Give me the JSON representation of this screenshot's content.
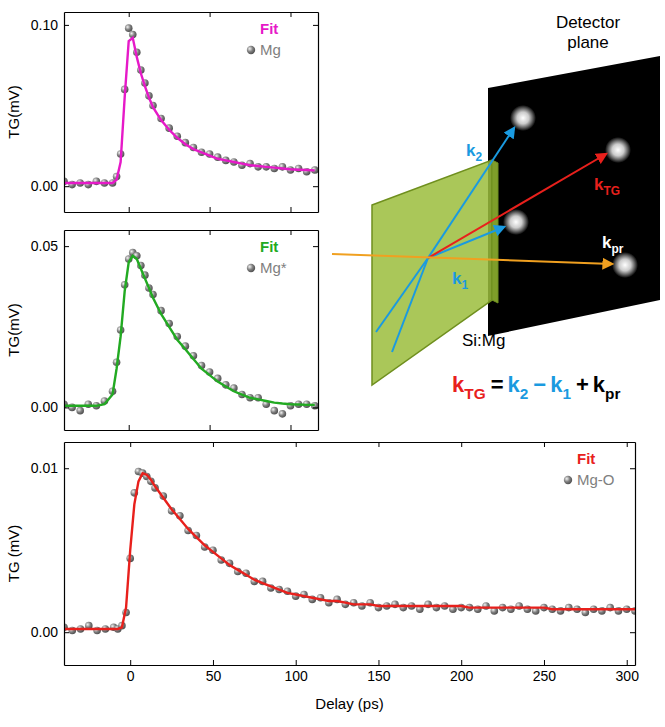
{
  "chart_data": [
    {
      "type": "scatter",
      "x": [
        -40,
        -35,
        -30,
        -25,
        -20,
        -15,
        -10,
        -7.5,
        -5,
        -2.5,
        0,
        2.5,
        5,
        7.5,
        10,
        12.5,
        15,
        20,
        25,
        30,
        35,
        40,
        45,
        50,
        55,
        60,
        65,
        70,
        75,
        80,
        85,
        90,
        95,
        100,
        105,
        110,
        115
      ],
      "xlim": [
        -40,
        117
      ],
      "xticks": [
        0,
        50,
        100
      ],
      "ylim": [
        -0.016,
        0.108
      ],
      "yticks": [
        {
          "value": 0,
          "label": "0.00"
        },
        {
          "value": 0.1,
          "label": "0.10"
        }
      ],
      "y_label": "TG(mV)",
      "tick_labels": "y",
      "legend": "upper right",
      "series": [
        {
          "name": "Fit",
          "type": "line",
          "color": "#e619c8",
          "line_style": "solid",
          "values": [
            0.002,
            0.002,
            0.002,
            0.002,
            0.002,
            0.002,
            0.002,
            0.004,
            0.015,
            0.055,
            0.09,
            0.092,
            0.08,
            0.07,
            0.062,
            0.055,
            0.049,
            0.041,
            0.035,
            0.03,
            0.026,
            0.023,
            0.021,
            0.019,
            0.017,
            0.016,
            0.015,
            0.014,
            0.013,
            0.0125,
            0.012,
            0.0115,
            0.011,
            0.0105,
            0.0102,
            0.01,
            0.0098
          ]
        },
        {
          "name": "Mg",
          "type": "scatter",
          "color": "#808080",
          "marker": "circle",
          "values": [
            0.003,
            0.001,
            0.002,
            0.001,
            0.003,
            0.002,
            0.002,
            0.006,
            0.02,
            0.06,
            0.098,
            0.094,
            0.083,
            0.072,
            0.064,
            0.056,
            0.05,
            0.042,
            0.036,
            0.031,
            0.027,
            0.024,
            0.021,
            0.02,
            0.018,
            0.016,
            0.015,
            0.013,
            0.014,
            0.012,
            0.012,
            0.011,
            0.012,
            0.01,
            0.011,
            0.009,
            0.01
          ]
        }
      ]
    },
    {
      "type": "scatter",
      "x": [
        -40,
        -35,
        -30,
        -25,
        -20,
        -15,
        -10,
        -7.5,
        -5,
        -2.5,
        0,
        2.5,
        5,
        7.5,
        10,
        12.5,
        15,
        20,
        25,
        30,
        35,
        40,
        45,
        50,
        55,
        60,
        65,
        70,
        75,
        80,
        85,
        90,
        95,
        100,
        105,
        110,
        115
      ],
      "xlim": [
        -40,
        117
      ],
      "xticks": [
        0,
        50,
        100
      ],
      "ylim": [
        -0.007,
        0.055
      ],
      "yticks": [
        {
          "value": 0,
          "label": "0.00"
        },
        {
          "value": 0.05,
          "label": "0.05"
        }
      ],
      "y_label": "TG(mV)",
      "tick_labels": "y",
      "legend": "upper right",
      "series": [
        {
          "name": "Fit",
          "type": "line",
          "color": "#22aa22",
          "line_style": "solid",
          "values": [
            0.0005,
            0.0005,
            0.0005,
            0.0005,
            0.0005,
            0.001,
            0.004,
            0.012,
            0.022,
            0.036,
            0.045,
            0.047,
            0.046,
            0.043,
            0.04,
            0.037,
            0.034,
            0.029,
            0.025,
            0.021,
            0.018,
            0.015,
            0.012,
            0.01,
            0.008,
            0.0065,
            0.005,
            0.004,
            0.003,
            0.0025,
            0.002,
            0.0015,
            0.0012,
            0.001,
            0.0009,
            0.0008,
            0.0008
          ]
        },
        {
          "name": "Mg*",
          "type": "scatter",
          "color": "#808080",
          "marker": "circle",
          "values": [
            0.001,
            0,
            -0.001,
            0.001,
            0.0005,
            0.002,
            0.005,
            0.014,
            0.024,
            0.038,
            0.046,
            0.048,
            0.047,
            0.044,
            0.041,
            0.037,
            0.035,
            0.03,
            0.026,
            0.022,
            0.019,
            0.016,
            0.013,
            0.011,
            0.009,
            0.007,
            0.006,
            0.004,
            0.003,
            0.003,
            0.001,
            -0.001,
            -0.002,
            0.0005,
            0.001,
            0.001,
            0.0005
          ]
        }
      ]
    },
    {
      "type": "scatter",
      "x": [
        -40,
        -35,
        -30,
        -25,
        -20,
        -15,
        -10,
        -7.5,
        -5,
        -2.5,
        0,
        2.5,
        5,
        7.5,
        10,
        12.5,
        15,
        20,
        25,
        30,
        35,
        40,
        45,
        50,
        55,
        60,
        65,
        70,
        75,
        80,
        85,
        90,
        95,
        100,
        105,
        110,
        115,
        120,
        125,
        130,
        135,
        140,
        145,
        150,
        155,
        160,
        165,
        170,
        175,
        180,
        185,
        190,
        195,
        200,
        205,
        210,
        215,
        220,
        225,
        230,
        235,
        240,
        245,
        250,
        255,
        260,
        265,
        270,
        275,
        280,
        285,
        290,
        295,
        300,
        305
      ],
      "xlim": [
        -40,
        305
      ],
      "xticks": [
        0,
        50,
        100,
        150,
        200,
        250,
        300
      ],
      "ylim": [
        -0.002,
        0.0116
      ],
      "yticks": [
        {
          "value": 0,
          "label": "0.00"
        },
        {
          "value": 0.01,
          "label": "0.01"
        }
      ],
      "x_label": "Delay (ps)",
      "y_label": "TG (mV)",
      "legend": "upper right",
      "series": [
        {
          "name": "Fit",
          "type": "line",
          "color": "#e8201c",
          "line_style": "solid",
          "values": [
            0.0002,
            0.0002,
            0.0002,
            0.0002,
            0.0002,
            0.0002,
            0.0002,
            0.0002,
            0.0003,
            0.0015,
            0.005,
            0.0078,
            0.0092,
            0.0097,
            0.0096,
            0.0093,
            0.0089,
            0.0082,
            0.0075,
            0.0069,
            0.0063,
            0.0058,
            0.0053,
            0.0049,
            0.0045,
            0.0041,
            0.0038,
            0.0035,
            0.0032,
            0.003,
            0.0028,
            0.0026,
            0.0024,
            0.0023,
            0.0022,
            0.0021,
            0.002,
            0.0019,
            0.0019,
            0.0018,
            0.0017,
            0.0017,
            0.0017,
            0.0016,
            0.0016,
            0.0016,
            0.0016,
            0.0016,
            0.0016,
            0.0016,
            0.0016,
            0.0016,
            0.0016,
            0.0016,
            0.0015,
            0.0015,
            0.0015,
            0.0015,
            0.0015,
            0.0015,
            0.0015,
            0.0015,
            0.0015,
            0.0015,
            0.0014,
            0.0014,
            0.0014,
            0.0014,
            0.0014,
            0.0014,
            0.0014,
            0.0014,
            0.0014,
            0.0014,
            0.0014
          ]
        },
        {
          "name": "Mg-O",
          "type": "scatter",
          "color": "#808080",
          "marker": "circle",
          "values": [
            0.0003,
            0.0001,
            0.0002,
            0.0004,
            0.0001,
            0.0002,
            0.0003,
            0.0002,
            0.0004,
            0.0012,
            0.0045,
            0.0085,
            0.0098,
            0.0097,
            0.0095,
            0.0092,
            0.0088,
            0.0083,
            0.0074,
            0.0071,
            0.0062,
            0.0059,
            0.0052,
            0.005,
            0.0044,
            0.0042,
            0.0037,
            0.0036,
            0.0031,
            0.0031,
            0.0027,
            0.0026,
            0.0025,
            0.0022,
            0.0023,
            0.002,
            0.0021,
            0.0018,
            0.002,
            0.0017,
            0.0018,
            0.0016,
            0.0018,
            0.0015,
            0.0016,
            0.0017,
            0.0015,
            0.0016,
            0.0014,
            0.0017,
            0.0015,
            0.0016,
            0.0014,
            0.0015,
            0.0015,
            0.0014,
            0.0016,
            0.0013,
            0.0015,
            0.0014,
            0.0016,
            0.0014,
            0.0013,
            0.0015,
            0.0014,
            0.0013,
            0.0015,
            0.0014,
            0.0012,
            0.0014,
            0.0013,
            0.0015,
            0.0013,
            0.0014,
            0.0013
          ]
        }
      ]
    }
  ],
  "diagram": {
    "detector_label": "Detector plane",
    "sample_label": "Si:Mg",
    "beams": [
      {
        "base": "k",
        "sub": "2",
        "color": "#1a9ae0"
      },
      {
        "base": "k",
        "sub": "TG",
        "color": "#e8201c"
      },
      {
        "base": "k",
        "sub": "1",
        "color": "#1a9ae0"
      },
      {
        "base": "k",
        "sub": "pr",
        "color": "#ffffff"
      }
    ],
    "equation": [
      {
        "base": "k",
        "sub": "TG",
        "color": "#e8201c"
      },
      {
        "base": "=",
        "color": "#000000"
      },
      {
        "base": "k",
        "sub": "2",
        "color": "#1a9ae0"
      },
      {
        "base": "−",
        "color": "#1a9ae0"
      },
      {
        "base": "k",
        "sub": "1",
        "color": "#1a9ae0"
      },
      {
        "base": "+",
        "color": "#000000"
      },
      {
        "base": "k",
        "sub": "pr",
        "color": "#000000"
      }
    ]
  }
}
